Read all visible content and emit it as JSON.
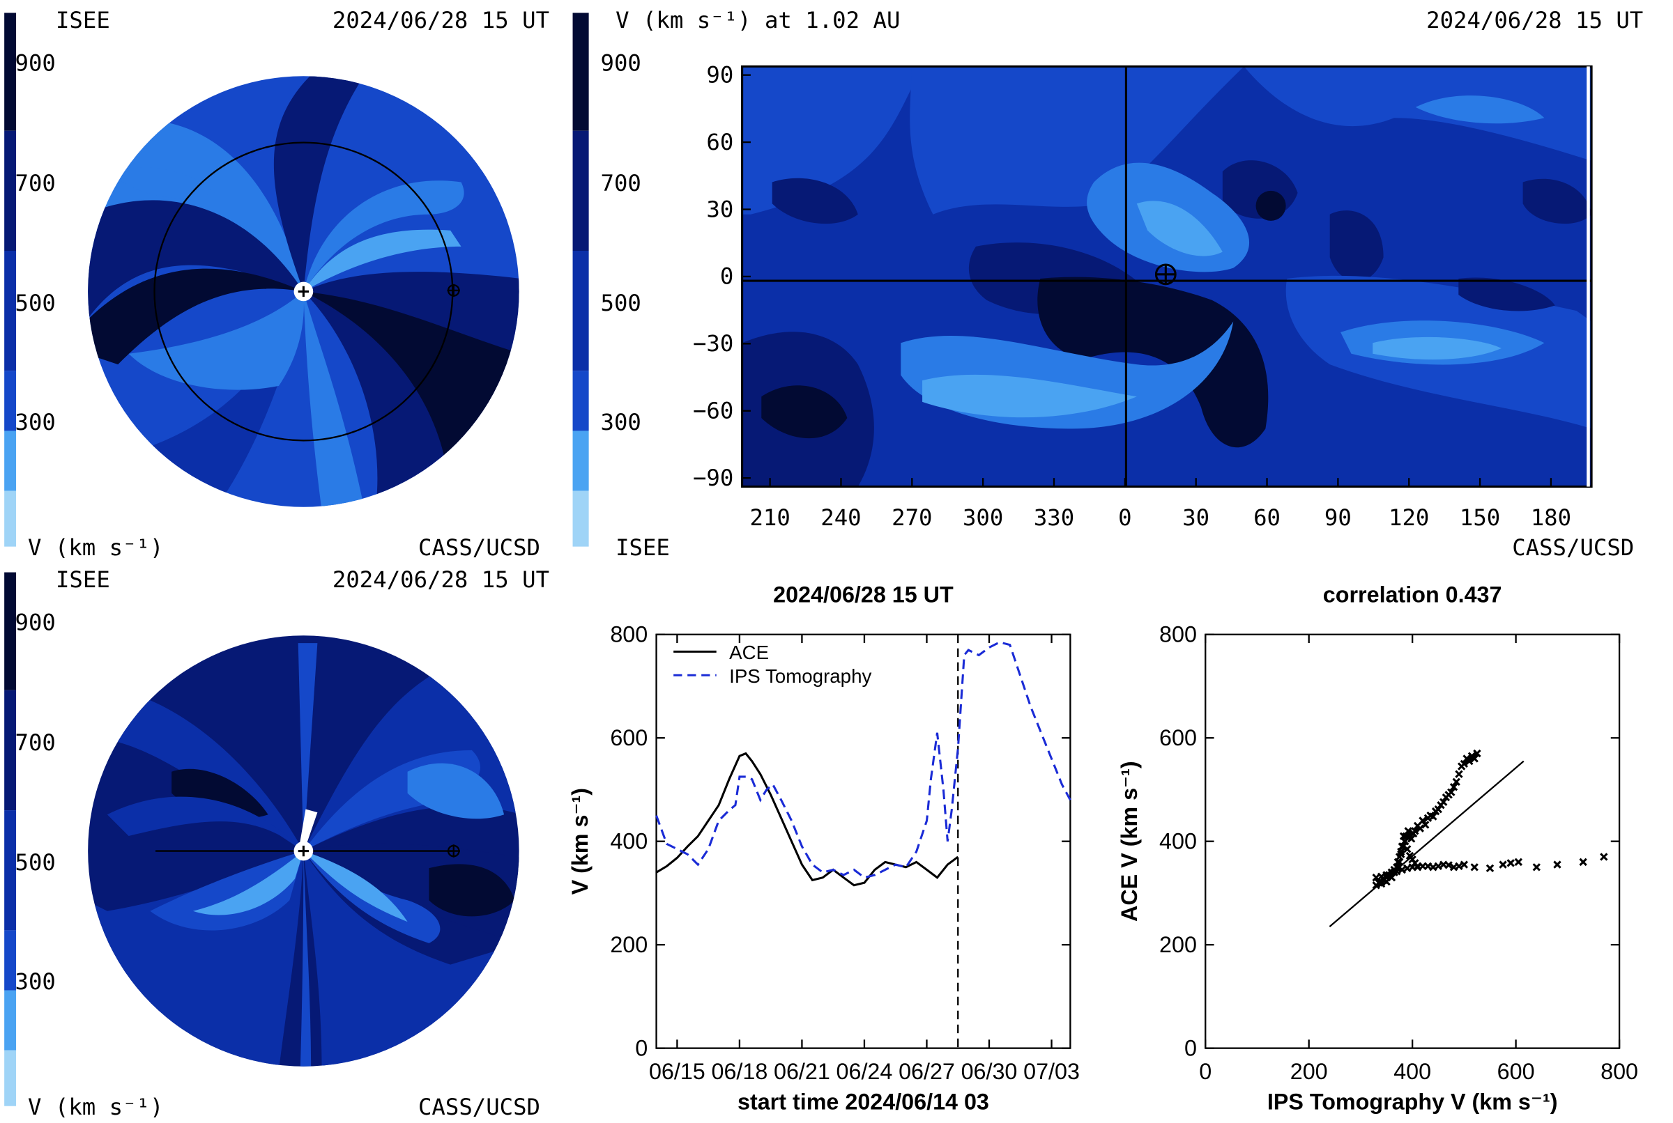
{
  "colors": {
    "v_darkest": "#020a33",
    "v_dark": "#061975",
    "v_mid": "#0b2fa8",
    "v_blue": "#1548c9",
    "v_light": "#2a7be6",
    "v_lighter": "#4aa3f2",
    "v_pale": "#9fd4f7",
    "ace_line": "#000000",
    "ips_line": "#1a2bd6"
  },
  "colorbar_ticks": [
    "900",
    "700",
    "500",
    "300"
  ],
  "panel_tl": {
    "org_left": "ISEE",
    "date": "2024/06/28 15 UT",
    "units": "V (km s⁻¹)",
    "org_right": "CASS/UCSD"
  },
  "panel_tr": {
    "title": "V (km s⁻¹) at 1.02 AU",
    "date": "2024/06/28 15 UT",
    "org_left": "ISEE",
    "org_right": "CASS/UCSD"
  },
  "panel_bl": {
    "org_left": "ISEE",
    "date": "2024/06/28 15 UT",
    "units": "V (km s⁻¹)",
    "org_right": "CASS/UCSD"
  },
  "panel_br1": {
    "title": "2024/06/28 15 UT",
    "ylabel": "V (km s⁻¹)",
    "xlabel": "start time 2024/06/14 03"
  },
  "panel_br2": {
    "title": "correlation 0.437",
    "ylabel": "ACE V (km s⁻¹)",
    "xlabel": "IPS Tomography V (km s⁻¹)"
  },
  "chart_data": [
    {
      "type": "heatmap",
      "xlabel": "",
      "ylabel": "",
      "x_ticks": [
        "210",
        "240",
        "270",
        "300",
        "330",
        "0",
        "30",
        "60",
        "90",
        "120",
        "150",
        "180"
      ],
      "y_ticks": [
        "90",
        "60",
        "30",
        "0",
        "−30",
        "−60",
        "−90"
      ],
      "ylim": [
        -90,
        90
      ],
      "colorbar_ticks": [
        "900",
        "700",
        "500",
        "300"
      ]
    },
    {
      "type": "line",
      "x_ticks": [
        "06/15",
        "06/18",
        "06/21",
        "06/24",
        "06/27",
        "06/30",
        "07/03"
      ],
      "y_ticks": [
        "800",
        "600",
        "400",
        "200",
        "0"
      ],
      "ylim": [
        0,
        800
      ],
      "xlim": [
        0,
        19.9
      ],
      "vline_x": 14.5,
      "series": [
        {
          "name": "ACE",
          "x": [
            0,
            0.5,
            1,
            1.5,
            2,
            2.5,
            3,
            3.5,
            4,
            4.3,
            4.6,
            5,
            5.5,
            6,
            6.5,
            7,
            7.5,
            8,
            8.5,
            9,
            9.5,
            10,
            10.5,
            11,
            11.5,
            12,
            12.5,
            13,
            13.5,
            14,
            14.5
          ],
          "y": [
            340,
            352,
            368,
            390,
            410,
            440,
            470,
            520,
            565,
            570,
            555,
            530,
            490,
            445,
            400,
            355,
            325,
            330,
            345,
            330,
            315,
            320,
            345,
            360,
            355,
            350,
            360,
            345,
            330,
            355,
            370
          ]
        },
        {
          "name": "IPS Tomography",
          "x": [
            0,
            0.5,
            1,
            1.5,
            2,
            2.5,
            3,
            3.5,
            3.8,
            4,
            4.3,
            4.6,
            5,
            5.3,
            5.6,
            6,
            6.5,
            7,
            7.5,
            8,
            8.5,
            9,
            9.5,
            10,
            10.5,
            11,
            11.5,
            12,
            12.5,
            13,
            13.2,
            13.5,
            13.8,
            14,
            14.2,
            14.5,
            14.8,
            15,
            15.5,
            16,
            16.5,
            17,
            17.5,
            18,
            18.5,
            19,
            19.5,
            19.9
          ],
          "y": [
            450,
            395,
            385,
            375,
            355,
            385,
            440,
            460,
            470,
            525,
            525,
            520,
            480,
            500,
            510,
            480,
            440,
            390,
            355,
            340,
            345,
            335,
            345,
            330,
            335,
            345,
            355,
            350,
            380,
            440,
            520,
            610,
            500,
            400,
            460,
            580,
            760,
            770,
            760,
            775,
            785,
            780,
            720,
            660,
            610,
            560,
            510,
            480
          ]
        },
        {
          "name": "legend_entries",
          "labels": [
            "ACE",
            "IPS Tomography"
          ]
        }
      ]
    },
    {
      "type": "scatter",
      "xlabel": "IPS Tomography V (km s⁻¹)",
      "ylabel": "ACE V (km s⁻¹)",
      "x_ticks": [
        "0",
        "200",
        "400",
        "600",
        "800"
      ],
      "y_ticks": [
        "800",
        "600",
        "400",
        "200",
        "0"
      ],
      "xlim": [
        0,
        800
      ],
      "ylim": [
        0,
        800
      ],
      "points": {
        "x": [
          330,
          335,
          340,
          345,
          350,
          355,
          360,
          365,
          370,
          372,
          375,
          378,
          382,
          385,
          388,
          392,
          395,
          398,
          402,
          405,
          410,
          415,
          420,
          425,
          430,
          435,
          440,
          445,
          450,
          455,
          460,
          465,
          470,
          475,
          480,
          485,
          490,
          495,
          500,
          505,
          510,
          515,
          520,
          525,
          330,
          340,
          350,
          360,
          370,
          380,
          390,
          400,
          410,
          420,
          430,
          440,
          450,
          460,
          470,
          480,
          490,
          500,
          520,
          550,
          575,
          590,
          605,
          640,
          680,
          730,
          770,
          340,
          350,
          360,
          365,
          370,
          375,
          378,
          380,
          383,
          386,
          390,
          395,
          400,
          405,
          410
        ],
        "y": [
          315,
          320,
          322,
          325,
          330,
          335,
          340,
          345,
          350,
          360,
          370,
          380,
          390,
          400,
          410,
          420,
          412,
          405,
          415,
          420,
          430,
          425,
          440,
          432,
          445,
          450,
          448,
          458,
          462,
          470,
          476,
          485,
          490,
          495,
          505,
          515,
          530,
          545,
          550,
          560,
          555,
          565,
          560,
          570,
          330,
          332,
          335,
          340,
          342,
          345,
          348,
          350,
          350,
          352,
          352,
          350,
          352,
          355,
          354,
          350,
          352,
          355,
          350,
          348,
          355,
          358,
          360,
          350,
          355,
          360,
          370,
          318,
          322,
          330,
          340,
          350,
          360,
          375,
          390,
          410,
          400,
          385,
          372,
          365,
          358,
          352
        ]
      },
      "fit_line": {
        "x": [
          240,
          615
        ],
        "y": [
          235,
          555
        ]
      }
    }
  ]
}
